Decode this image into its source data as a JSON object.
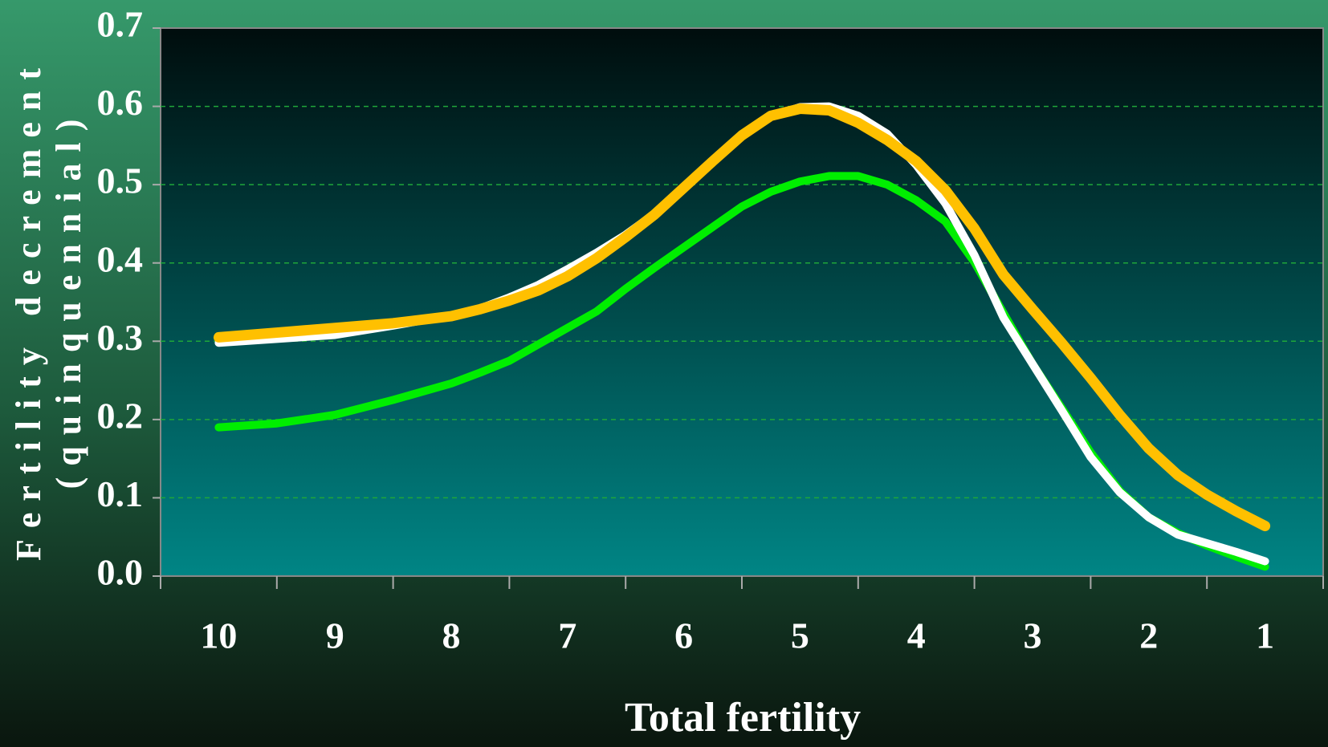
{
  "chart_data": {
    "type": "line",
    "xlabel": "Total fertility",
    "ylabel": [
      "Fertility decrement",
      "(quinquennial)"
    ],
    "x": [
      10,
      9.5,
      9,
      8.5,
      8,
      7.75,
      7.5,
      7.25,
      7,
      6.75,
      6.5,
      6.25,
      6,
      5.75,
      5.5,
      5.25,
      5,
      4.75,
      4.5,
      4.25,
      4,
      3.75,
      3.5,
      3.25,
      3,
      2.75,
      2.5,
      2.25,
      2,
      1.75,
      1.5,
      1.25,
      1
    ],
    "series": [
      {
        "color": "#00ee00",
        "values": [
          0.19,
          0.195,
          0.206,
          0.225,
          0.246,
          0.26,
          0.275,
          0.296,
          0.317,
          0.338,
          0.367,
          0.394,
          0.42,
          0.446,
          0.472,
          0.491,
          0.504,
          0.511,
          0.511,
          0.5,
          0.48,
          0.453,
          0.401,
          0.336,
          0.271,
          0.215,
          0.158,
          0.109,
          0.075,
          0.055,
          0.039,
          0.025,
          0.012
        ]
      },
      {
        "color": "#ffffff",
        "values": [
          0.298,
          0.303,
          0.308,
          0.32,
          0.333,
          0.342,
          0.356,
          0.372,
          0.392,
          0.413,
          0.436,
          0.463,
          0.495,
          0.53,
          0.562,
          0.587,
          0.599,
          0.6,
          0.588,
          0.565,
          0.525,
          0.476,
          0.41,
          0.33,
          0.271,
          0.212,
          0.152,
          0.107,
          0.075,
          0.053,
          0.042,
          0.031,
          0.019
        ]
      },
      {
        "color": "#ffc000",
        "values": [
          0.305,
          0.311,
          0.317,
          0.323,
          0.332,
          0.341,
          0.352,
          0.365,
          0.383,
          0.406,
          0.433,
          0.462,
          0.496,
          0.53,
          0.563,
          0.588,
          0.597,
          0.595,
          0.579,
          0.557,
          0.53,
          0.493,
          0.444,
          0.385,
          0.341,
          0.298,
          0.253,
          0.206,
          0.163,
          0.129,
          0.104,
          0.083,
          0.064
        ]
      }
    ],
    "xlim": [
      10.5,
      0.5
    ],
    "xticks": [
      10,
      9,
      8,
      7,
      6,
      5,
      4,
      3,
      2,
      1
    ],
    "ylim": [
      0,
      0.7
    ],
    "yticks": [
      {
        "value": 0,
        "label": "0.0"
      },
      0.1,
      0.2,
      0.3,
      0.4,
      0.5,
      0.6,
      0.7
    ],
    "grid": true
  }
}
